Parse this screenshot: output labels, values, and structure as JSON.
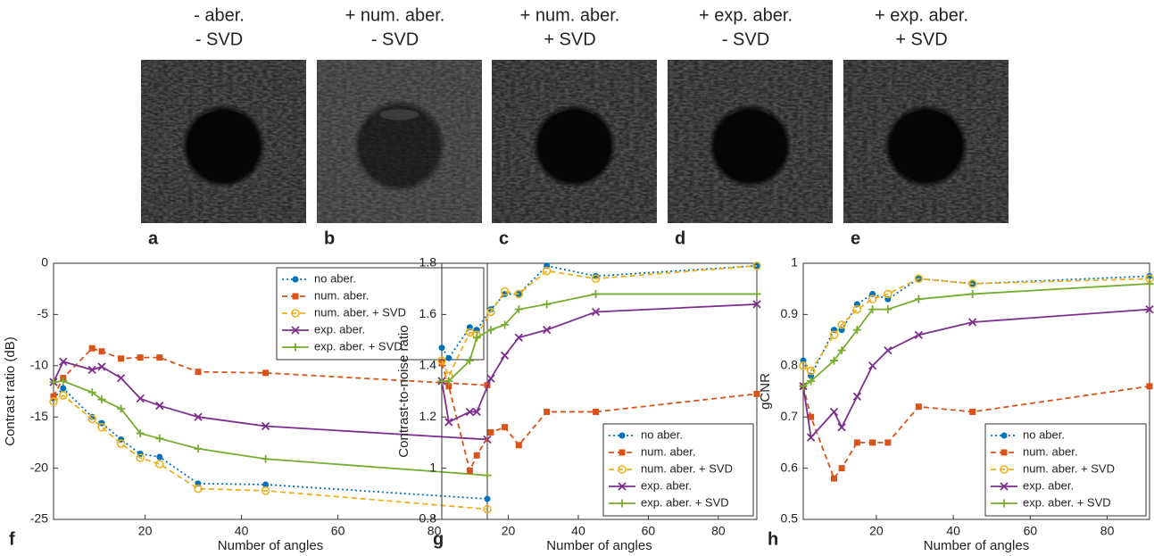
{
  "panels": [
    {
      "title": [
        "- aber.",
        "- SVD"
      ],
      "letter": "a"
    },
    {
      "title": [
        "+ num. aber.",
        "- SVD"
      ],
      "letter": "b"
    },
    {
      "title": [
        "+ num. aber.",
        "+ SVD"
      ],
      "letter": "c"
    },
    {
      "title": [
        "+ exp. aber.",
        "- SVD"
      ],
      "letter": "d"
    },
    {
      "title": [
        "+ exp. aber.",
        "+ SVD"
      ],
      "letter": "e"
    }
  ],
  "chart_data": [
    {
      "type": "line",
      "letter": "f",
      "xlabel": "Number of angles",
      "ylabel": "Contrast ratio (dB)",
      "xlim": [
        1,
        91
      ],
      "xticks": [
        20,
        40,
        60,
        80
      ],
      "ylim": [
        -25,
        0
      ],
      "yticks": [
        -25,
        -20,
        -15,
        -10,
        -5,
        0
      ],
      "legend": "upper right",
      "x": [
        1,
        3,
        9,
        11,
        15,
        19,
        23,
        31,
        45,
        91
      ],
      "series": [
        {
          "name": "no aber.",
          "color": "#0072bd",
          "marker": "dot",
          "dash": "dotted",
          "values": [
            -13.2,
            -12.2,
            -15,
            -15.6,
            -17.2,
            -18.6,
            -18.9,
            -21.5,
            -21.6,
            -23
          ]
        },
        {
          "name": "num. aber.",
          "color": "#d95319",
          "marker": "square",
          "dash": "dashed",
          "values": [
            -13,
            -11.2,
            -8.3,
            -8.6,
            -9.3,
            -9.2,
            -9.2,
            -10.6,
            -10.7,
            -11.9
          ]
        },
        {
          "name": "num. aber. + SVD",
          "color": "#edb120",
          "marker": "open-circle",
          "dash": "dashed",
          "values": [
            -13.5,
            -12.9,
            -15.2,
            -16,
            -17.6,
            -19,
            -19.6,
            -22,
            -22.2,
            -24
          ]
        },
        {
          "name": "exp. aber.",
          "color": "#7e2f8e",
          "marker": "x",
          "dash": "solid",
          "values": [
            -11.6,
            -9.6,
            -10.4,
            -10.1,
            -11.2,
            -13.2,
            -13.9,
            -15,
            -15.9,
            -17.2
          ]
        },
        {
          "name": "exp. aber. + SVD",
          "color": "#77ac30",
          "marker": "plus",
          "dash": "solid",
          "values": [
            -11.6,
            -11.5,
            -12.6,
            -13.3,
            -14.2,
            -16.6,
            -17.1,
            -18.1,
            -19.1,
            -20.7
          ]
        }
      ]
    },
    {
      "type": "line",
      "letter": "g",
      "xlabel": "Number of angles",
      "ylabel": "Contrast-to-noise ratio",
      "xlim": [
        1,
        91
      ],
      "xticks": [
        20,
        40,
        60,
        80
      ],
      "ylim": [
        0.8,
        1.8
      ],
      "yticks": [
        0.8,
        1,
        1.2,
        1.4,
        1.6,
        1.8
      ],
      "legend": "lower right",
      "x": [
        1,
        3,
        9,
        11,
        15,
        19,
        23,
        31,
        45,
        91
      ],
      "series": [
        {
          "name": "no aber.",
          "color": "#0072bd",
          "marker": "dot",
          "dash": "dotted",
          "values": [
            1.47,
            1.43,
            1.55,
            1.54,
            1.62,
            1.68,
            1.68,
            1.79,
            1.75,
            1.79
          ]
        },
        {
          "name": "num. aber.",
          "color": "#d95319",
          "marker": "square",
          "dash": "dashed",
          "values": [
            1.41,
            1.32,
            0.99,
            1.05,
            1.14,
            1.16,
            1.09,
            1.22,
            1.22,
            1.29
          ]
        },
        {
          "name": "num. aber. + SVD",
          "color": "#edb120",
          "marker": "open-circle",
          "dash": "dashed",
          "values": [
            1.42,
            1.36,
            1.53,
            1.52,
            1.61,
            1.69,
            1.68,
            1.77,
            1.74,
            1.79
          ]
        },
        {
          "name": "exp. aber.",
          "color": "#7e2f8e",
          "marker": "x",
          "dash": "solid",
          "values": [
            1.34,
            1.18,
            1.22,
            1.22,
            1.35,
            1.44,
            1.51,
            1.54,
            1.61,
            1.64
          ]
        },
        {
          "name": "exp. aber. + SVD",
          "color": "#77ac30",
          "marker": "plus",
          "dash": "solid",
          "values": [
            1.34,
            1.34,
            1.42,
            1.51,
            1.54,
            1.56,
            1.62,
            1.64,
            1.68,
            1.68
          ]
        }
      ]
    },
    {
      "type": "line",
      "letter": "h",
      "xlabel": "Number of angles",
      "ylabel": "gCNR",
      "xlim": [
        1,
        91
      ],
      "xticks": [
        20,
        40,
        60,
        80
      ],
      "ylim": [
        0.5,
        1
      ],
      "yticks": [
        0.5,
        0.6,
        0.7,
        0.8,
        0.9,
        1
      ],
      "legend": "lower right",
      "x": [
        1,
        3,
        9,
        11,
        15,
        19,
        23,
        31,
        45,
        91
      ],
      "series": [
        {
          "name": "no aber.",
          "color": "#0072bd",
          "marker": "dot",
          "dash": "dotted",
          "values": [
            0.81,
            0.78,
            0.87,
            0.87,
            0.92,
            0.94,
            0.93,
            0.97,
            0.96,
            0.975
          ]
        },
        {
          "name": "num. aber.",
          "color": "#d95319",
          "marker": "square",
          "dash": "dashed",
          "values": [
            0.76,
            0.7,
            0.58,
            0.6,
            0.65,
            0.65,
            0.65,
            0.72,
            0.71,
            0.76
          ]
        },
        {
          "name": "num. aber. + SVD",
          "color": "#edb120",
          "marker": "open-circle",
          "dash": "dashed",
          "values": [
            0.8,
            0.79,
            0.86,
            0.88,
            0.91,
            0.93,
            0.94,
            0.97,
            0.96,
            0.97
          ]
        },
        {
          "name": "exp. aber.",
          "color": "#7e2f8e",
          "marker": "x",
          "dash": "solid",
          "values": [
            0.76,
            0.66,
            0.71,
            0.68,
            0.74,
            0.8,
            0.83,
            0.86,
            0.885,
            0.91
          ]
        },
        {
          "name": "exp. aber. + SVD",
          "color": "#77ac30",
          "marker": "plus",
          "dash": "solid",
          "values": [
            0.76,
            0.77,
            0.81,
            0.83,
            0.87,
            0.91,
            0.91,
            0.93,
            0.94,
            0.96
          ]
        }
      ]
    }
  ]
}
